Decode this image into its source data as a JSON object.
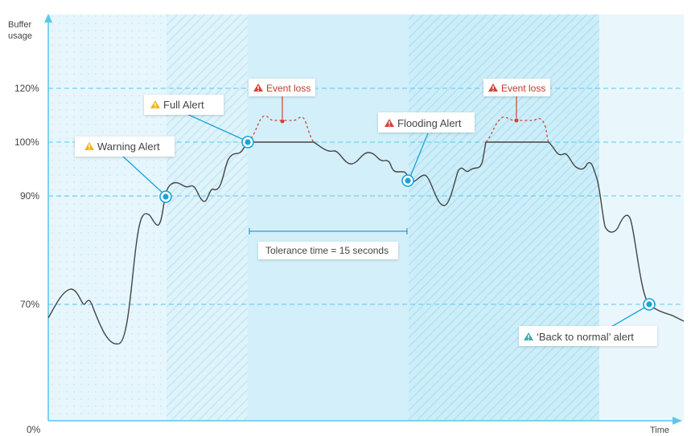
{
  "axes": {
    "y_title_line1": "Buffer",
    "y_title_line2": "usage",
    "x_title": "Time",
    "y_ticks": [
      "120%",
      "100%",
      "90%",
      "70%",
      "0%"
    ]
  },
  "callouts": {
    "warning": "Warning Alert",
    "full": "Full Alert",
    "flooding": "Flooding Alert",
    "back_to_normal": "‘Back to normal’ alert",
    "event_loss_1": "Event loss",
    "event_loss_2": "Event loss",
    "tolerance": "Tolerance time = 15 seconds"
  },
  "icons": {
    "warning": "warning-triangle-yellow-icon",
    "full": "warning-triangle-yellow-icon",
    "flooding": "warning-triangle-red-icon",
    "event_loss": "warning-triangle-red-icon",
    "back_to_normal": "warning-triangle-teal-icon"
  },
  "colors": {
    "axis": "#5bc8ea",
    "band_light": "#e6f6fc",
    "band_medium": "#d4effa",
    "band_last": "#e9f7fc",
    "curve": "#444444",
    "marker": "#1aa3d6",
    "event_loss": "#d0443a",
    "warning_icon": "#f2b51c",
    "error_icon": "#d0443a",
    "normal_icon": "#3aaab0"
  }
}
